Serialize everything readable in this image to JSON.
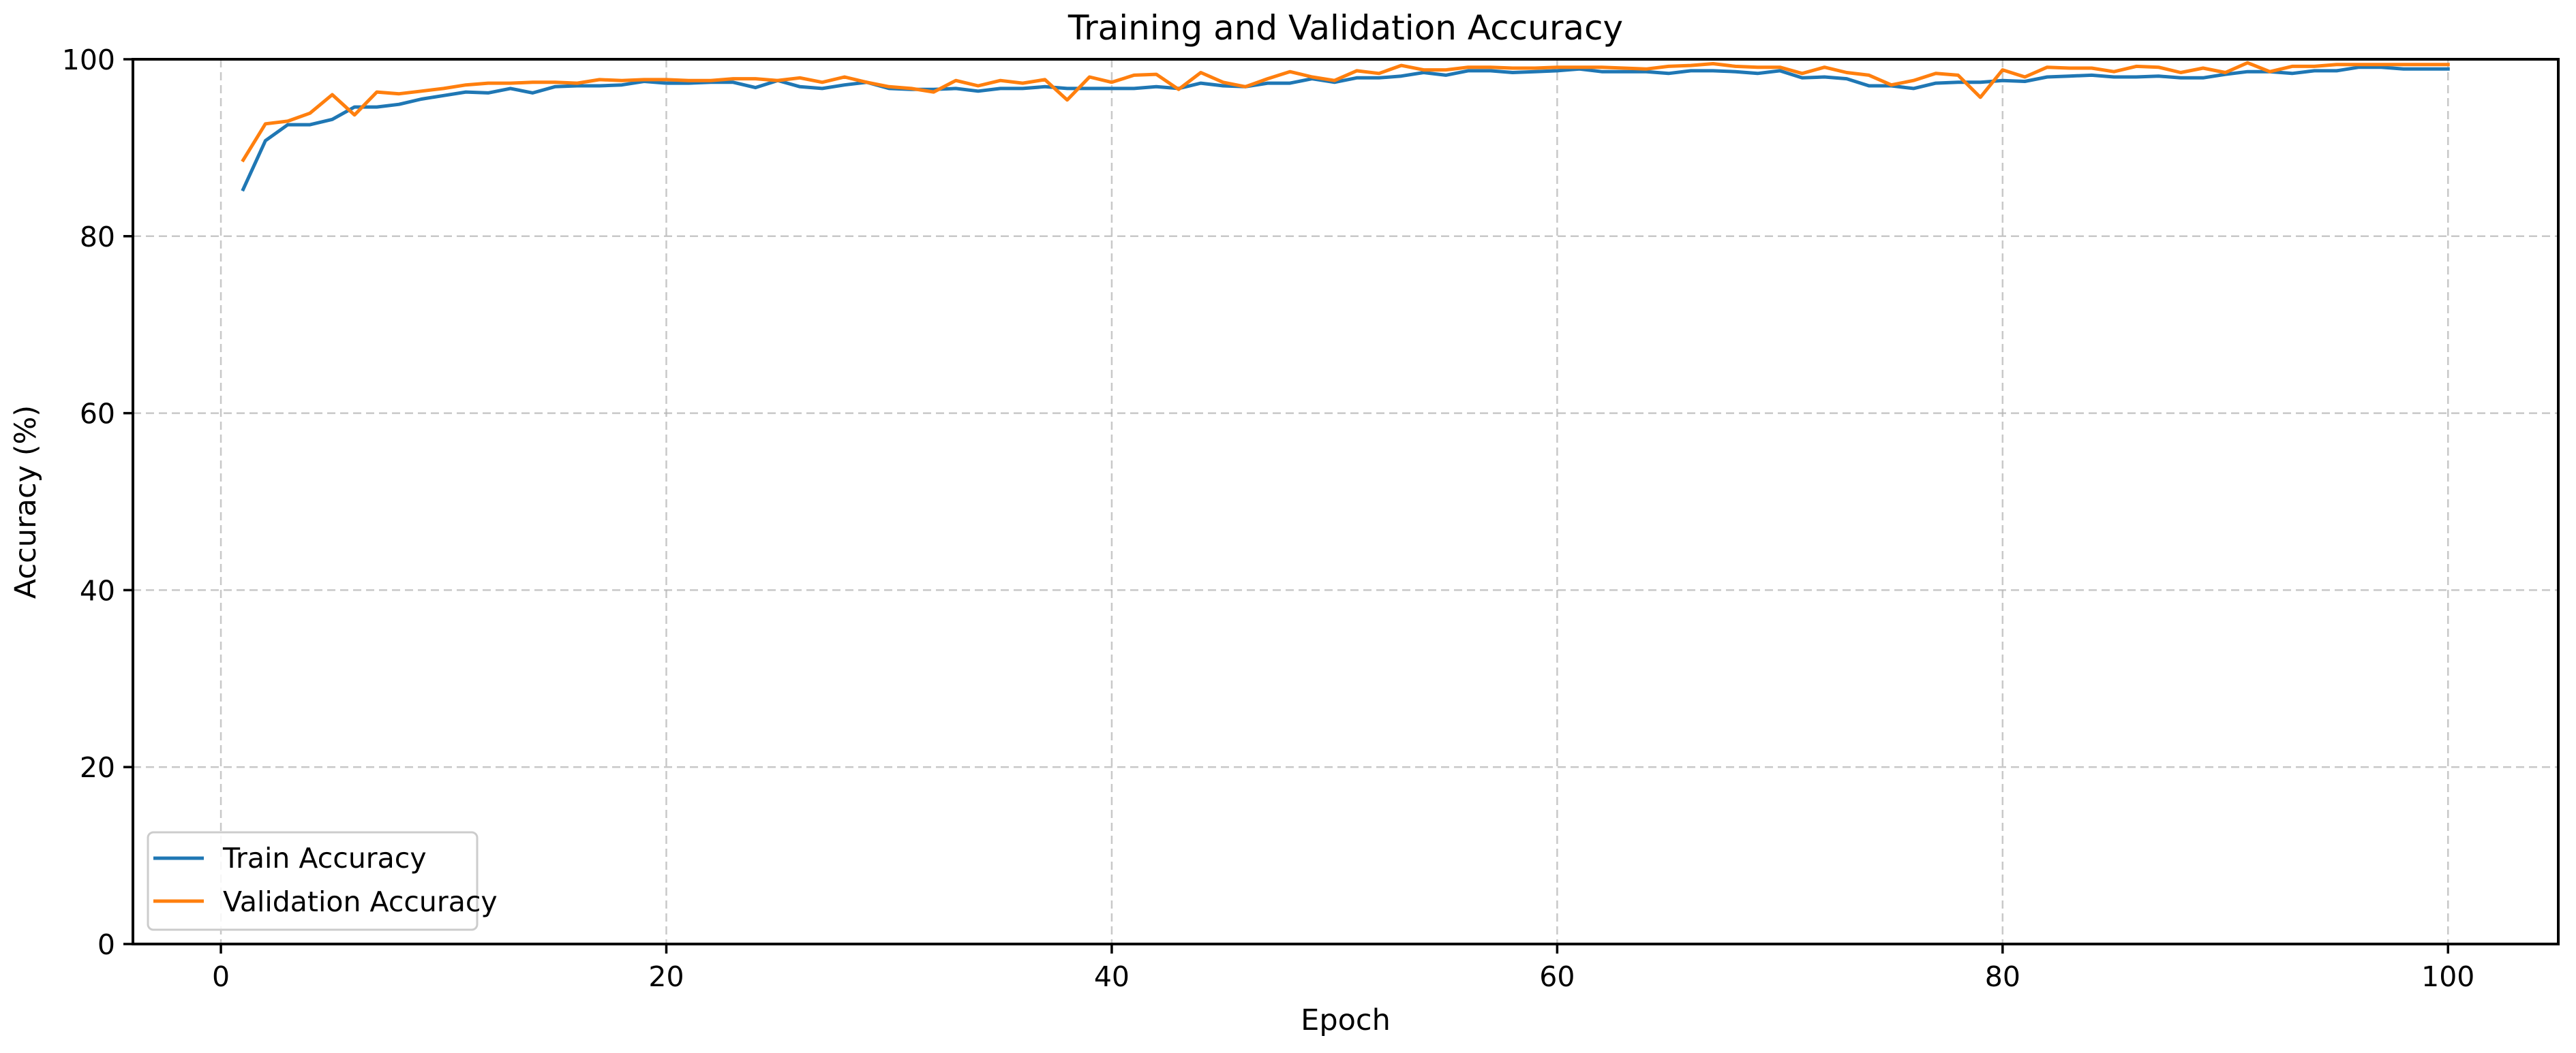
{
  "figure": {
    "title": "Training and Validation Accuracy",
    "xlabel": "Epoch",
    "ylabel": "Accuracy (%)"
  },
  "legend": {
    "items": [
      {
        "label": "Train Accuracy",
        "color": "#1f77b4"
      },
      {
        "label": "Validation Accuracy",
        "color": "#ff7f0e"
      }
    ]
  },
  "axes": {
    "xticks": [
      0,
      20,
      40,
      60,
      80,
      100
    ],
    "yticks": [
      0,
      20,
      40,
      60,
      80,
      100
    ]
  },
  "chart_data": {
    "type": "line",
    "title": "Training and Validation Accuracy",
    "xlabel": "Epoch",
    "ylabel": "Accuracy (%)",
    "xlim": [
      -3.95,
      104.95
    ],
    "ylim": [
      0,
      100
    ],
    "grid": true,
    "grid_style": "dashed",
    "legend_position": "lower left",
    "x": [
      1,
      2,
      3,
      4,
      5,
      6,
      7,
      8,
      9,
      10,
      11,
      12,
      13,
      14,
      15,
      16,
      17,
      18,
      19,
      20,
      21,
      22,
      23,
      24,
      25,
      26,
      27,
      28,
      29,
      30,
      31,
      32,
      33,
      34,
      35,
      36,
      37,
      38,
      39,
      40,
      41,
      42,
      43,
      44,
      45,
      46,
      47,
      48,
      49,
      50,
      51,
      52,
      53,
      54,
      55,
      56,
      57,
      58,
      59,
      60,
      61,
      62,
      63,
      64,
      65,
      66,
      67,
      68,
      69,
      70,
      71,
      72,
      73,
      74,
      75,
      76,
      77,
      78,
      79,
      80,
      81,
      82,
      83,
      84,
      85,
      86,
      87,
      88,
      89,
      90,
      91,
      92,
      93,
      94,
      95,
      96,
      97,
      98,
      99,
      100
    ],
    "series": [
      {
        "name": "Train Accuracy",
        "color": "#1f77b4",
        "values": [
          85.3,
          90.8,
          92.6,
          92.6,
          93.2,
          94.6,
          94.6,
          94.9,
          95.5,
          95.9,
          96.3,
          96.2,
          96.7,
          96.2,
          96.9,
          97.0,
          97.0,
          97.1,
          97.5,
          97.3,
          97.3,
          97.4,
          97.4,
          96.8,
          97.6,
          96.9,
          96.7,
          97.1,
          97.4,
          96.7,
          96.6,
          96.6,
          96.7,
          96.4,
          96.7,
          96.7,
          96.9,
          96.7,
          96.7,
          96.7,
          96.7,
          96.9,
          96.7,
          97.3,
          97.0,
          96.9,
          97.3,
          97.3,
          97.8,
          97.4,
          97.9,
          97.9,
          98.1,
          98.5,
          98.2,
          98.7,
          98.7,
          98.5,
          98.6,
          98.7,
          98.9,
          98.6,
          98.6,
          98.6,
          98.4,
          98.7,
          98.7,
          98.6,
          98.4,
          98.7,
          97.9,
          98.0,
          97.8,
          97.0,
          97.0,
          96.7,
          97.3,
          97.4,
          97.4,
          97.6,
          97.5,
          98.0,
          98.1,
          98.2,
          98.0,
          98.0,
          98.1,
          97.9,
          97.9,
          98.3,
          98.6,
          98.6,
          98.4,
          98.7,
          98.7,
          99.1,
          99.1,
          98.9,
          98.9,
          98.9
        ]
      },
      {
        "name": "Validation Accuracy",
        "color": "#ff7f0e",
        "values": [
          88.6,
          92.7,
          93.0,
          93.9,
          96.0,
          93.7,
          96.3,
          96.1,
          96.4,
          96.7,
          97.1,
          97.3,
          97.3,
          97.4,
          97.4,
          97.3,
          97.7,
          97.6,
          97.7,
          97.7,
          97.6,
          97.6,
          97.8,
          97.8,
          97.6,
          97.9,
          97.4,
          98.0,
          97.4,
          96.9,
          96.7,
          96.3,
          97.6,
          97.0,
          97.6,
          97.3,
          97.7,
          95.4,
          98.0,
          97.4,
          98.2,
          98.3,
          96.6,
          98.5,
          97.4,
          96.9,
          97.8,
          98.6,
          98.0,
          97.6,
          98.7,
          98.4,
          99.3,
          98.8,
          98.8,
          99.1,
          99.1,
          99.0,
          99.0,
          99.1,
          99.1,
          99.1,
          99.0,
          98.9,
          99.2,
          99.3,
          99.5,
          99.2,
          99.1,
          99.1,
          98.4,
          99.1,
          98.5,
          98.2,
          97.1,
          97.6,
          98.4,
          98.2,
          95.7,
          98.8,
          98.0,
          99.1,
          99.0,
          99.0,
          98.6,
          99.2,
          99.1,
          98.5,
          99.0,
          98.5,
          99.6,
          98.6,
          99.2,
          99.2,
          99.4,
          99.4,
          99.4,
          99.4,
          99.4,
          99.4
        ]
      }
    ]
  }
}
